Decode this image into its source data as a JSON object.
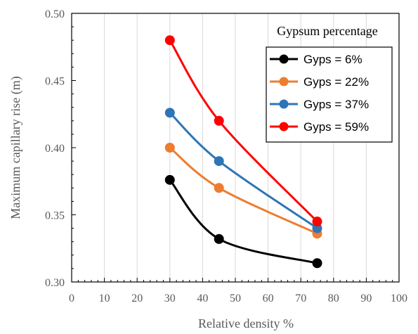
{
  "chart_data": {
    "type": "line",
    "xlabel": "Relative density %",
    "ylabel": "Maximum capillary rise (m)",
    "xlim": [
      0,
      100
    ],
    "ylim": [
      0.3,
      0.5
    ],
    "x_ticks": [
      0,
      10,
      20,
      30,
      40,
      50,
      60,
      70,
      80,
      90,
      100
    ],
    "y_ticks": [
      0.3,
      0.35,
      0.4,
      0.45,
      0.5
    ],
    "y_tick_labels": [
      "0.30",
      "0.35",
      "0.40",
      "0.45",
      "0.50"
    ],
    "grid": "vertical gridlines at x ticks",
    "legend_title": "Gypsum percentage",
    "legend_position": "top-right",
    "series": [
      {
        "name": "Gyps = 6%",
        "color": "#000000",
        "x": [
          30,
          45,
          75
        ],
        "y": [
          0.376,
          0.332,
          0.314
        ]
      },
      {
        "name": "Gyps = 22%",
        "color": "#ED7D31",
        "x": [
          30,
          45,
          75
        ],
        "y": [
          0.4,
          0.37,
          0.336
        ]
      },
      {
        "name": "Gyps = 37%",
        "color": "#2E75B6",
        "x": [
          30,
          45,
          75
        ],
        "y": [
          0.426,
          0.39,
          0.34
        ]
      },
      {
        "name": "Gyps = 59%",
        "color": "#FF0000",
        "x": [
          30,
          45,
          75
        ],
        "y": [
          0.48,
          0.42,
          0.345
        ]
      }
    ]
  }
}
